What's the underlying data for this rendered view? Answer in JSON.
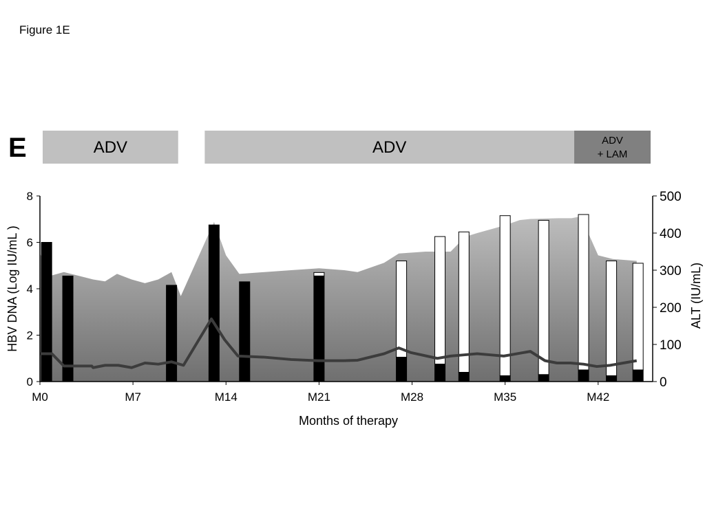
{
  "figure_label": "Figure 1E",
  "panel_letter": "E",
  "therapy_bands": [
    {
      "label": "ADV",
      "start_month": 0,
      "end_month": 10.4,
      "color": "#c0c0c0"
    },
    {
      "label": "ADV",
      "start_month": 12.4,
      "end_month": 40.2,
      "color": "#c0c0c0"
    },
    {
      "label": "ADV\n+ LAM",
      "start_month": 40.2,
      "end_month": 45.0,
      "color": "#808080"
    }
  ],
  "chart_data": {
    "type": "bar",
    "xlabel": "Months of therapy",
    "ylabel_left": "HBV DNA (Log IU/mL )",
    "ylabel_right": "ALT (IU/mL)",
    "x_ticks": [
      {
        "value": 0,
        "label": "M0"
      },
      {
        "value": 7,
        "label": "M7"
      },
      {
        "value": 14,
        "label": "M14"
      },
      {
        "value": 21,
        "label": "M21"
      },
      {
        "value": 28,
        "label": "M28"
      },
      {
        "value": 35,
        "label": "M35"
      },
      {
        "value": 42,
        "label": "M42"
      }
    ],
    "xlim": [
      0,
      46
    ],
    "ylim_left": [
      0,
      8
    ],
    "ylim_right": [
      0,
      500
    ],
    "left_ticks": [
      0,
      2,
      4,
      6,
      8
    ],
    "right_ticks": [
      0,
      100,
      200,
      300,
      400,
      500
    ],
    "alt_area": {
      "x": [
        0,
        0.8,
        1.8,
        4.0,
        4.9,
        5.8,
        6.9,
        7.9,
        8.9,
        9.9,
        10.6,
        13.1,
        14.0,
        15.0,
        16.9,
        18.9,
        21.0,
        22.9,
        23.9,
        25.9,
        27.0,
        29.0,
        30.9,
        32.0,
        32.9,
        34.9,
        36.1,
        36.9,
        39.0,
        40.0,
        40.7,
        42.0,
        43.1,
        44.9
      ],
      "y": [
        345,
        285,
        295,
        275,
        270,
        290,
        275,
        265,
        275,
        295,
        230,
        430,
        340,
        290,
        295,
        300,
        305,
        300,
        295,
        320,
        345,
        350,
        350,
        390,
        400,
        420,
        435,
        438,
        440,
        440,
        445,
        340,
        330,
        325
      ]
    },
    "hbv_line": {
      "x": [
        0,
        0.9,
        1.8,
        3.9,
        4.0,
        4.9,
        5.9,
        6.9,
        7.9,
        8.9,
        9.9,
        10.8,
        12.9,
        13.9,
        14.9,
        16.9,
        18.9,
        20.9,
        22.9,
        23.9,
        25.9,
        27.0,
        27.9,
        29.9,
        30.9,
        31.9,
        32.9,
        33.9,
        34.9,
        36.9,
        38.0,
        38.9,
        39.9,
        40.9,
        41.9,
        42.9,
        43.9,
        44.9
      ],
      "y": [
        1.2,
        1.2,
        0.67,
        0.67,
        0.6,
        0.7,
        0.7,
        0.6,
        0.8,
        0.75,
        0.85,
        0.7,
        2.7,
        1.8,
        1.1,
        1.05,
        0.95,
        0.9,
        0.9,
        0.92,
        1.2,
        1.45,
        1.25,
        1.0,
        1.1,
        1.15,
        1.2,
        1.15,
        1.1,
        1.3,
        0.9,
        0.8,
        0.8,
        0.75,
        0.65,
        0.7,
        0.8,
        0.9
      ]
    },
    "bars": [
      {
        "x": 0.5,
        "black": 6.0,
        "white": 0
      },
      {
        "x": 2.1,
        "black": 4.55,
        "white": 0
      },
      {
        "x": 9.9,
        "black": 4.15,
        "white": 0
      },
      {
        "x": 13.1,
        "black": 6.75,
        "white": 0
      },
      {
        "x": 15.4,
        "black": 4.3,
        "white": 0
      },
      {
        "x": 21.0,
        "black": 4.55,
        "white": 0.15
      },
      {
        "x": 27.2,
        "black": 1.05,
        "white": 4.15
      },
      {
        "x": 30.1,
        "black": 0.75,
        "white": 5.5
      },
      {
        "x": 31.9,
        "black": 0.4,
        "white": 6.05
      },
      {
        "x": 35.0,
        "black": 0.25,
        "white": 6.9
      },
      {
        "x": 37.9,
        "black": 0.3,
        "white": 6.65
      },
      {
        "x": 40.9,
        "black": 0.5,
        "white": 6.7
      },
      {
        "x": 43.0,
        "black": 0.25,
        "white": 4.95
      },
      {
        "x": 45.0,
        "black": 0.5,
        "white": 4.6
      }
    ],
    "colors": {
      "area_top": "#bdbdbd",
      "area_bottom": "#6f6f6f",
      "line": "#3c3c3c",
      "bar_solid": "#000000",
      "bar_hollow": "#ffffff"
    }
  }
}
